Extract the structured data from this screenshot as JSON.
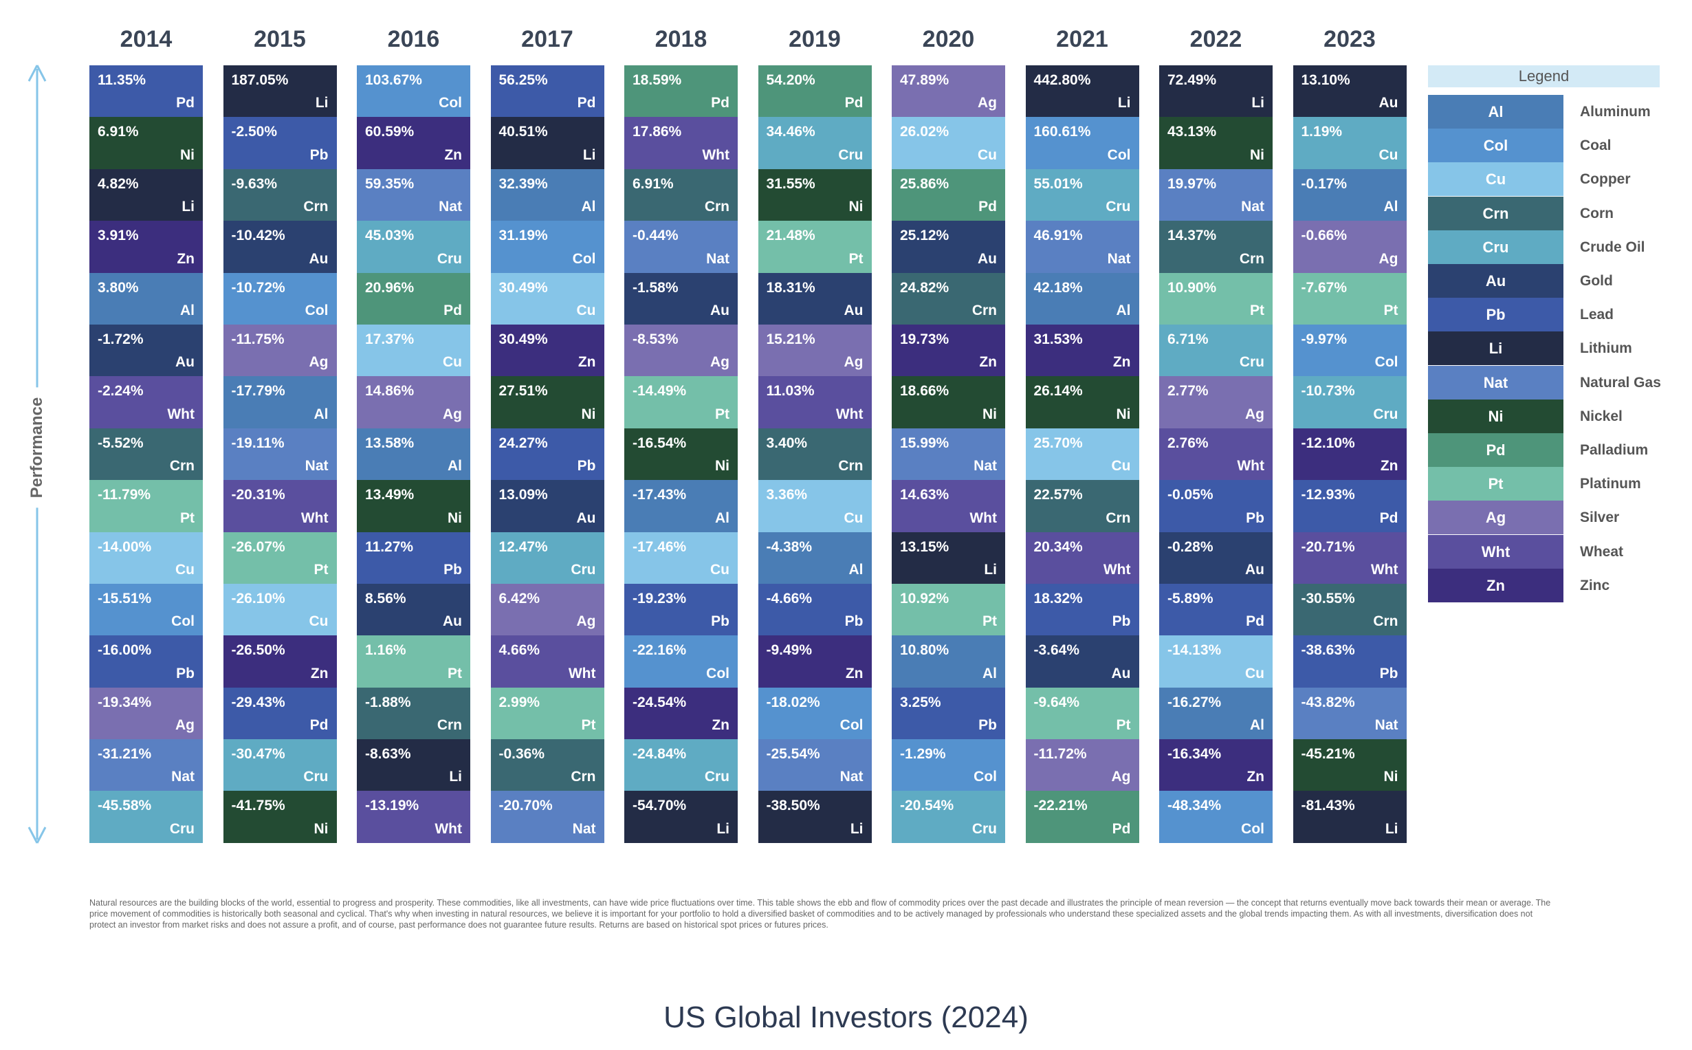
{
  "chart_data": {
    "type": "table",
    "ylabel": "Performance",
    "years": [
      "2014",
      "2015",
      "2016",
      "2017",
      "2018",
      "2019",
      "2020",
      "2021",
      "2022",
      "2023"
    ],
    "columns": [
      {
        "year": "2014",
        "cells": [
          [
            "11.35%",
            "Pd",
            "#3d5aa8"
          ],
          [
            "6.91%",
            "Ni"
          ],
          [
            "4.82%",
            "Li"
          ],
          [
            "3.91%",
            "Zn"
          ],
          [
            "3.80%",
            "Al"
          ],
          [
            "-1.72%",
            "Au"
          ],
          [
            "-2.24%",
            "Wht"
          ],
          [
            "-5.52%",
            "Crn"
          ],
          [
            "-11.79%",
            "Pt"
          ],
          [
            "-14.00%",
            "Cu"
          ],
          [
            "-15.51%",
            "Col"
          ],
          [
            "-16.00%",
            "Pb"
          ],
          [
            "-19.34%",
            "Ag"
          ],
          [
            "-31.21%",
            "Nat"
          ],
          [
            "-45.58%",
            "Cru"
          ]
        ]
      },
      {
        "year": "2015",
        "cells": [
          [
            "187.05%",
            "Li"
          ],
          [
            "-2.50%",
            "Pb"
          ],
          [
            "-9.63%",
            "Crn"
          ],
          [
            "-10.42%",
            "Au"
          ],
          [
            "-10.72%",
            "Col"
          ],
          [
            "-11.75%",
            "Ag"
          ],
          [
            "-17.79%",
            "Al"
          ],
          [
            "-19.11%",
            "Nat"
          ],
          [
            "-20.31%",
            "Wht"
          ],
          [
            "-26.07%",
            "Pt"
          ],
          [
            "-26.10%",
            "Cu"
          ],
          [
            "-26.50%",
            "Zn"
          ],
          [
            "-29.43%",
            "Pd",
            "#3d5aa8"
          ],
          [
            "-30.47%",
            "Cru"
          ],
          [
            "-41.75%",
            "Ni"
          ]
        ]
      },
      {
        "year": "2016",
        "cells": [
          [
            "103.67%",
            "Col"
          ],
          [
            "60.59%",
            "Zn"
          ],
          [
            "59.35%",
            "Nat"
          ],
          [
            "45.03%",
            "Cru"
          ],
          [
            "20.96%",
            "Pd"
          ],
          [
            "17.37%",
            "Cu"
          ],
          [
            "14.86%",
            "Ag"
          ],
          [
            "13.58%",
            "Al"
          ],
          [
            "13.49%",
            "Ni"
          ],
          [
            "11.27%",
            "Pb"
          ],
          [
            "8.56%",
            "Au"
          ],
          [
            "1.16%",
            "Pt"
          ],
          [
            "-1.88%",
            "Crn"
          ],
          [
            "-8.63%",
            "Li"
          ],
          [
            "-13.19%",
            "Wht"
          ]
        ]
      },
      {
        "year": "2017",
        "cells": [
          [
            "56.25%",
            "Pd",
            "#3d5aa8"
          ],
          [
            "40.51%",
            "Li"
          ],
          [
            "32.39%",
            "Al"
          ],
          [
            "31.19%",
            "Col"
          ],
          [
            "30.49%",
            "Cu"
          ],
          [
            "30.49%",
            "Zn"
          ],
          [
            "27.51%",
            "Ni"
          ],
          [
            "24.27%",
            "Pb"
          ],
          [
            "13.09%",
            "Au"
          ],
          [
            "12.47%",
            "Cru"
          ],
          [
            "6.42%",
            "Ag"
          ],
          [
            "4.66%",
            "Wht"
          ],
          [
            "2.99%",
            "Pt"
          ],
          [
            "-0.36%",
            "Crn"
          ],
          [
            "-20.70%",
            "Nat"
          ]
        ]
      },
      {
        "year": "2018",
        "cells": [
          [
            "18.59%",
            "Pd"
          ],
          [
            "17.86%",
            "Wht"
          ],
          [
            "6.91%",
            "Crn"
          ],
          [
            "-0.44%",
            "Nat"
          ],
          [
            "-1.58%",
            "Au"
          ],
          [
            "-8.53%",
            "Ag"
          ],
          [
            "-14.49%",
            "Pt"
          ],
          [
            "-16.54%",
            "Ni"
          ],
          [
            "-17.43%",
            "Al"
          ],
          [
            "-17.46%",
            "Cu"
          ],
          [
            "-19.23%",
            "Pb"
          ],
          [
            "-22.16%",
            "Col"
          ],
          [
            "-24.54%",
            "Zn"
          ],
          [
            "-24.84%",
            "Cru"
          ],
          [
            "-54.70%",
            "Li"
          ]
        ]
      },
      {
        "year": "2019",
        "cells": [
          [
            "54.20%",
            "Pd"
          ],
          [
            "34.46%",
            "Cru"
          ],
          [
            "31.55%",
            "Ni"
          ],
          [
            "21.48%",
            "Pt"
          ],
          [
            "18.31%",
            "Au"
          ],
          [
            "15.21%",
            "Ag"
          ],
          [
            "11.03%",
            "Wht"
          ],
          [
            "3.40%",
            "Crn"
          ],
          [
            "3.36%",
            "Cu"
          ],
          [
            "-4.38%",
            "Al"
          ],
          [
            "-4.66%",
            "Pb"
          ],
          [
            "-9.49%",
            "Zn"
          ],
          [
            "-18.02%",
            "Col"
          ],
          [
            "-25.54%",
            "Nat"
          ],
          [
            "-38.50%",
            "Li"
          ]
        ]
      },
      {
        "year": "2020",
        "cells": [
          [
            "47.89%",
            "Ag"
          ],
          [
            "26.02%",
            "Cu"
          ],
          [
            "25.86%",
            "Pd"
          ],
          [
            "25.12%",
            "Au"
          ],
          [
            "24.82%",
            "Crn"
          ],
          [
            "19.73%",
            "Zn"
          ],
          [
            "18.66%",
            "Ni"
          ],
          [
            "15.99%",
            "Nat"
          ],
          [
            "14.63%",
            "Wht"
          ],
          [
            "13.15%",
            "Li"
          ],
          [
            "10.92%",
            "Pt"
          ],
          [
            "10.80%",
            "Al"
          ],
          [
            "3.25%",
            "Pb"
          ],
          [
            "-1.29%",
            "Col"
          ],
          [
            "-20.54%",
            "Cru"
          ]
        ]
      },
      {
        "year": "2021",
        "cells": [
          [
            "442.80%",
            "Li"
          ],
          [
            "160.61%",
            "Col"
          ],
          [
            "55.01%",
            "Cru"
          ],
          [
            "46.91%",
            "Nat"
          ],
          [
            "42.18%",
            "Al"
          ],
          [
            "31.53%",
            "Zn"
          ],
          [
            "26.14%",
            "Ni"
          ],
          [
            "25.70%",
            "Cu"
          ],
          [
            "22.57%",
            "Crn"
          ],
          [
            "20.34%",
            "Wht"
          ],
          [
            "18.32%",
            "Pb"
          ],
          [
            "-3.64%",
            "Au"
          ],
          [
            "-9.64%",
            "Pt"
          ],
          [
            "-11.72%",
            "Ag"
          ],
          [
            "-22.21%",
            "Pd"
          ]
        ]
      },
      {
        "year": "2022",
        "cells": [
          [
            "72.49%",
            "Li"
          ],
          [
            "43.13%",
            "Ni"
          ],
          [
            "19.97%",
            "Nat"
          ],
          [
            "14.37%",
            "Crn"
          ],
          [
            "10.90%",
            "Pt"
          ],
          [
            "6.71%",
            "Cru"
          ],
          [
            "2.77%",
            "Ag"
          ],
          [
            "2.76%",
            "Wht"
          ],
          [
            "-0.05%",
            "Pb"
          ],
          [
            "-0.28%",
            "Au"
          ],
          [
            "-5.89%",
            "Pd",
            "#3d5aa8"
          ],
          [
            "-14.13%",
            "Cu"
          ],
          [
            "-16.27%",
            "Al"
          ],
          [
            "-16.34%",
            "Zn"
          ],
          [
            "-48.34%",
            "Col"
          ]
        ]
      },
      {
        "year": "2023",
        "cells": [
          [
            "13.10%",
            "Au",
            "#232c46"
          ],
          [
            "1.19%",
            "Cu",
            "#5fabc3"
          ],
          [
            "-0.17%",
            "Al"
          ],
          [
            "-0.66%",
            "Ag"
          ],
          [
            "-7.67%",
            "Pt"
          ],
          [
            "-9.97%",
            "Col"
          ],
          [
            "-10.73%",
            "Cru"
          ],
          [
            "-12.10%",
            "Zn"
          ],
          [
            "-12.93%",
            "Pd",
            "#3d5aa8"
          ],
          [
            "-20.71%",
            "Wht"
          ],
          [
            "-30.55%",
            "Crn"
          ],
          [
            "-38.63%",
            "Pb"
          ],
          [
            "-43.82%",
            "Nat"
          ],
          [
            "-45.21%",
            "Ni"
          ],
          [
            "-81.43%",
            "Li"
          ]
        ]
      }
    ],
    "legend_title": "Legend",
    "legend": [
      {
        "code": "Al",
        "name": "Aluminum",
        "color": "#4a7db5"
      },
      {
        "code": "Col",
        "name": "Coal",
        "color": "#5592cf"
      },
      {
        "code": "Cu",
        "name": "Copper",
        "color": "#86c5e8"
      },
      {
        "code": "Crn",
        "name": "Corn",
        "color": "#3a6872"
      },
      {
        "code": "Cru",
        "name": "Crude Oil",
        "color": "#5fabc3"
      },
      {
        "code": "Au",
        "name": "Gold",
        "color": "#2b4170"
      },
      {
        "code": "Pb",
        "name": "Lead",
        "color": "#3d5aa8"
      },
      {
        "code": "Li",
        "name": "Lithium",
        "color": "#232c46"
      },
      {
        "code": "Nat",
        "name": "Natural Gas",
        "color": "#5a80c2"
      },
      {
        "code": "Ni",
        "name": "Nickel",
        "color": "#234b33"
      },
      {
        "code": "Pd",
        "name": "Palladium",
        "color": "#4e957a"
      },
      {
        "code": "Pt",
        "name": "Platinum",
        "color": "#74bfa9"
      },
      {
        "code": "Ag",
        "name": "Silver",
        "color": "#7a6fb0"
      },
      {
        "code": "Wht",
        "name": "Wheat",
        "color": "#5a4f9e"
      },
      {
        "code": "Zn",
        "name": "Zinc",
        "color": "#3c2e7e"
      }
    ],
    "axis_color": "#86c5e8"
  },
  "footnote": "Natural resources are the building blocks of the world, essential to progress and prosperity. These commodities, like all investments, can have wide price fluctuations over time. This table shows the ebb and flow of commodity prices over the past decade and illustrates the principle of mean reversion — the concept that returns eventually move back towards their mean or average. The price movement of commodities is historically both seasonal and cyclical. That's why when investing in natural resources, we believe it is important for your portfolio to hold a diversified basket of commodities and to be actively managed by professionals who understand these specialized assets and the global trends impacting them. As with all investments, diversification does not protect an investor from market risks and does not assure a profit, and of course, past performance does not guarantee future results. Returns are based on historical spot prices or futures prices.",
  "source": "US Global Investors (2024)"
}
